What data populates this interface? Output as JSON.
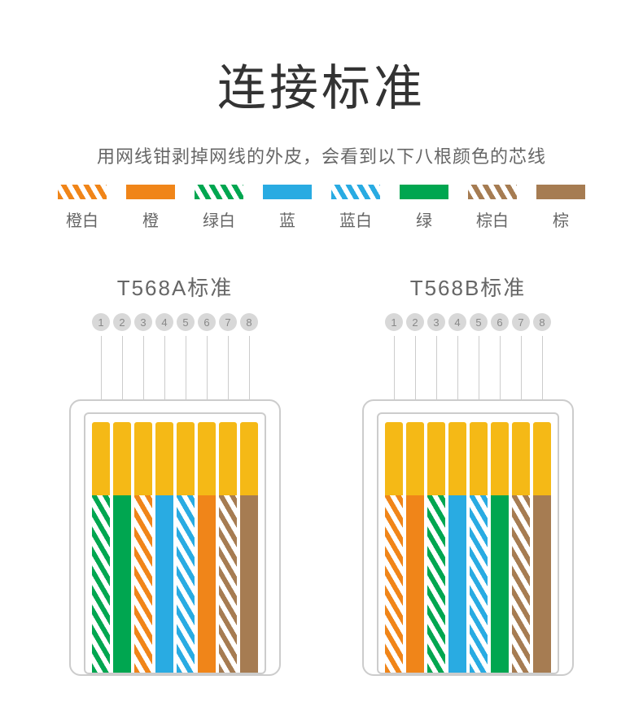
{
  "title": "连接标准",
  "subtitle": "用网线钳剥掉网线的外皮，会看到以下八根颜色的芯线",
  "colors": {
    "orange": "#f08519",
    "green": "#00a650",
    "blue": "#29abe2",
    "brown": "#a67c52",
    "white": "#ffffff",
    "gold": "#f5b916",
    "outline": "#cccccc",
    "text_dark": "#333333",
    "text_gray": "#666666",
    "pin_bg": "#d8d8d8"
  },
  "legend": [
    {
      "label": "橙白",
      "type": "stripe",
      "color": "#f08519"
    },
    {
      "label": "橙",
      "type": "solid",
      "color": "#f08519"
    },
    {
      "label": "绿白",
      "type": "stripe",
      "color": "#00a650"
    },
    {
      "label": "蓝",
      "type": "solid",
      "color": "#29abe2"
    },
    {
      "label": "蓝白",
      "type": "stripe",
      "color": "#29abe2"
    },
    {
      "label": "绿",
      "type": "solid",
      "color": "#00a650"
    },
    {
      "label": "棕白",
      "type": "stripe",
      "color": "#a67c52"
    },
    {
      "label": "棕",
      "type": "solid",
      "color": "#a67c52"
    }
  ],
  "connectors": [
    {
      "title": "T568A标准",
      "pins": [
        "1",
        "2",
        "3",
        "4",
        "5",
        "6",
        "7",
        "8"
      ],
      "wires": [
        {
          "type": "stripe",
          "color": "#00a650"
        },
        {
          "type": "solid",
          "color": "#00a650"
        },
        {
          "type": "stripe",
          "color": "#f08519"
        },
        {
          "type": "solid",
          "color": "#29abe2"
        },
        {
          "type": "stripe",
          "color": "#29abe2"
        },
        {
          "type": "solid",
          "color": "#f08519"
        },
        {
          "type": "stripe",
          "color": "#a67c52"
        },
        {
          "type": "solid",
          "color": "#a67c52"
        }
      ]
    },
    {
      "title": "T568B标准",
      "pins": [
        "1",
        "2",
        "3",
        "4",
        "5",
        "6",
        "7",
        "8"
      ],
      "wires": [
        {
          "type": "stripe",
          "color": "#f08519"
        },
        {
          "type": "solid",
          "color": "#f08519"
        },
        {
          "type": "stripe",
          "color": "#00a650"
        },
        {
          "type": "solid",
          "color": "#29abe2"
        },
        {
          "type": "stripe",
          "color": "#29abe2"
        },
        {
          "type": "solid",
          "color": "#00a650"
        },
        {
          "type": "stripe",
          "color": "#a67c52"
        },
        {
          "type": "solid",
          "color": "#a67c52"
        }
      ]
    }
  ]
}
